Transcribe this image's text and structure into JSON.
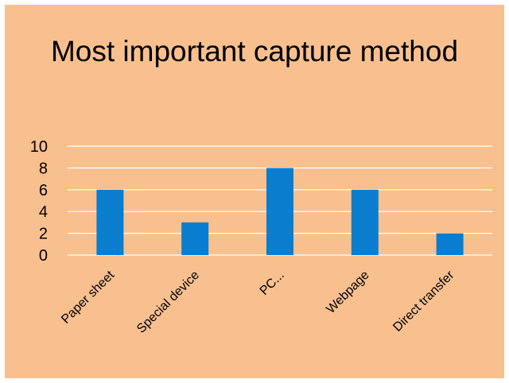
{
  "chart_data": {
    "type": "bar",
    "title": "Most important capture method",
    "categories": [
      "Paper sheet",
      "Special device",
      "PC...",
      "Webpage",
      "Direct transfer"
    ],
    "values": [
      6,
      3,
      8,
      6,
      2
    ],
    "ylim": [
      0,
      10
    ],
    "yticks": [
      0,
      2,
      4,
      6,
      8,
      10
    ],
    "xlabel": "",
    "ylabel": "",
    "grid": true,
    "legend": "none",
    "colors": {
      "background": "#f8c08e",
      "bar": "#0a7dcf",
      "grid": "#ffffff",
      "text": "#000000"
    }
  }
}
